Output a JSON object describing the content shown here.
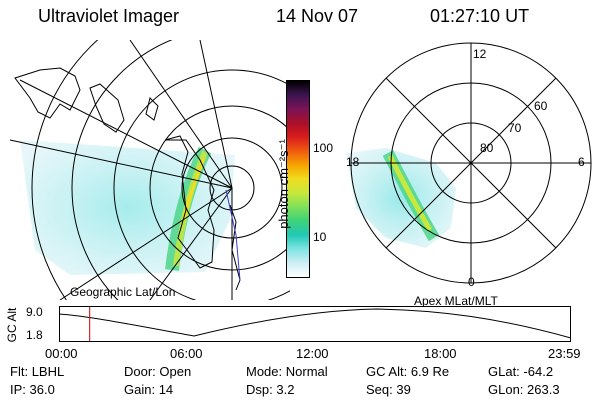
{
  "header": {
    "instrument": "Ultraviolet Imager",
    "date": "14 Nov 07",
    "time": "01:27:10 UT"
  },
  "colorbar": {
    "unit_label": "photon cm⁻²s⁻¹",
    "ticks": [
      "100",
      "10"
    ],
    "stops": [
      "#000000",
      "#3c1450",
      "#7a1458",
      "#aa0f2a",
      "#d81c1c",
      "#f05a10",
      "#f7a300",
      "#f0dc20",
      "#c8e83c",
      "#7fe05a",
      "#3cd27a",
      "#22c8b4",
      "#7fe4e4",
      "#cdeef4",
      "#ffffff"
    ]
  },
  "left_map": {
    "caption": "Geographic Lat/Lon"
  },
  "right_map": {
    "caption": "Apex  MLat/MLT",
    "mlt_labels": [
      "12",
      "18",
      "6",
      "0"
    ],
    "mlat_labels": [
      "60",
      "70",
      "80"
    ]
  },
  "alt_plot": {
    "ylabel": "GC Alt",
    "yticks": [
      "9.0",
      "1.8"
    ],
    "xticks": [
      "00:00",
      "06:00",
      "12:00",
      "18:00",
      "23:59"
    ],
    "current_time_fraction": 0.06
  },
  "info": {
    "row1": [
      {
        "label": "Flt:",
        "value": "LBHL"
      },
      {
        "label": "Door:",
        "value": "Open"
      },
      {
        "label": "Mode:",
        "value": "Normal"
      },
      {
        "label": "GC Alt:",
        "value": "6.9 Re"
      },
      {
        "label": "GLat:",
        "value": "-64.2"
      }
    ],
    "row2": [
      {
        "label": "IP:",
        "value": "36.0"
      },
      {
        "label": "Gain:",
        "value": "14"
      },
      {
        "label": "Dsp:",
        "value": "3.2"
      },
      {
        "label": "Seq:",
        "value": "39"
      },
      {
        "label": "GLon:",
        "value": "263.3"
      }
    ]
  }
}
